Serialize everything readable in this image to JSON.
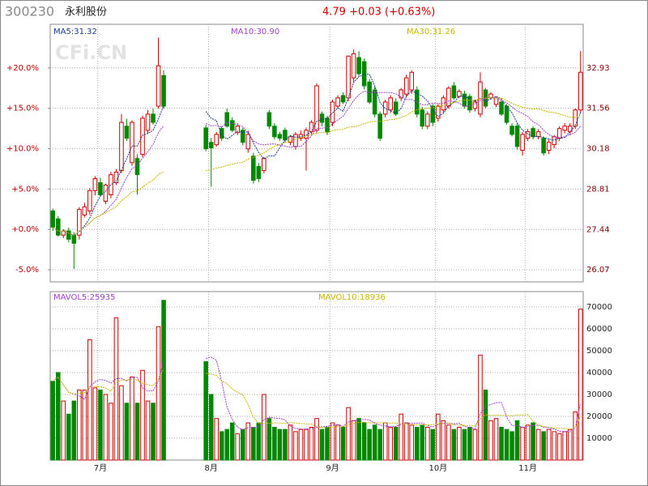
{
  "header": {
    "code": "300230",
    "name": "永利股份",
    "quote": "4.79 +0.03 (+0.63%)",
    "watermark": "CFi.CN"
  },
  "chart_data": {
    "type": "candlestick",
    "categories": [
      null,
      null,
      null,
      null,
      null,
      null,
      null,
      null,
      null,
      "7月",
      null,
      null,
      null,
      null,
      null,
      null,
      null,
      null,
      null,
      null,
      null,
      null,
      null,
      null,
      null,
      null,
      null,
      null,
      null,
      null,
      "8月",
      null,
      null,
      null,
      null,
      null,
      null,
      null,
      null,
      null,
      null,
      null,
      null,
      null,
      null,
      null,
      null,
      null,
      null,
      null,
      null,
      null,
      null,
      "9月",
      null,
      null,
      null,
      null,
      null,
      null,
      null,
      null,
      null,
      null,
      null,
      null,
      null,
      null,
      null,
      null,
      null,
      null,
      null,
      "10月",
      null,
      null,
      null,
      null,
      null,
      null,
      null,
      null,
      null,
      null,
      null,
      null,
      null,
      null,
      null,
      null,
      "11月",
      null,
      null,
      null,
      null,
      null,
      null,
      null,
      null,
      null,
      null
    ],
    "open": [
      28.07,
      27.8,
      27.25,
      27.39,
      27.25,
      27.25,
      27.93,
      28.07,
      28.76,
      29.03,
      28.4,
      28.62,
      29.03,
      29.44,
      30.95,
      29.71,
      29.85,
      29.99,
      30.81,
      31.36,
      31.63,
      32.67,
      null,
      null,
      null,
      null,
      null,
      null,
      null,
      30.89,
      30.4,
      30.32,
      30.87,
      31.41,
      31.14,
      30.73,
      30.81,
      30.18,
      29.93,
      29.58,
      29.44,
      31.41,
      30.95,
      30.67,
      30.81,
      30.4,
      30.26,
      30.54,
      30.54,
      30.76,
      30.81,
      31.36,
      31.22,
      31.08,
      31.63,
      31.99,
      31.91,
      32.59,
      33.28,
      33.14,
      32.45,
      32.18,
      31.36,
      31.36,
      31.5,
      31.77,
      31.91,
      32.04,
      32.18,
      32.18,
      31.5,
      30.95,
      31.63,
      31.22,
      31.5,
      31.63,
      32.32,
      31.96,
      32.04,
      31.96,
      31.55,
      31.36,
      32.18,
      31.91,
      31.69,
      31.77,
      31.63,
      30.95,
      30.95,
      30.13,
      30.54,
      30.87,
      30.59,
      30.54,
      30.13,
      30.32,
      30.54,
      30.81,
      30.76,
      30.95,
      31.5
    ],
    "high": [
      28.15,
      27.9,
      27.45,
      27.5,
      27.35,
      28.2,
      28.35,
      28.85,
      29.25,
      29.2,
      29.0,
      29.4,
      29.5,
      31.36,
      31.2,
      31.15,
      30.0,
      31.3,
      31.5,
      31.55,
      33.96,
      32.85,
      null,
      null,
      null,
      null,
      null,
      null,
      null,
      31.0,
      30.55,
      30.75,
      30.95,
      31.55,
      31.25,
      31.05,
      30.9,
      30.8,
      30.05,
      29.7,
      29.9,
      31.5,
      31.05,
      30.75,
      30.9,
      30.65,
      30.75,
      30.8,
      30.9,
      31.15,
      32.4,
      31.45,
      31.3,
      31.85,
      32.0,
      32.1,
      33.35,
      33.55,
      33.5,
      33.25,
      32.55,
      32.3,
      31.45,
      31.85,
      32.0,
      31.9,
      32.25,
      32.7,
      32.85,
      32.3,
      31.6,
      31.45,
      31.7,
      31.7,
      32.0,
      32.3,
      32.45,
      32.2,
      32.15,
      32.05,
      31.85,
      32.78,
      32.25,
      32.1,
      31.95,
      31.85,
      31.7,
      31.05,
      31.05,
      30.75,
      30.85,
      30.95,
      30.85,
      30.6,
      30.5,
      30.65,
      30.95,
      31.05,
      31.05,
      31.55,
      33.5
    ],
    "low": [
      27.39,
      27.2,
      27.15,
      27.0,
      26.1,
      27.1,
      27.85,
      27.95,
      28.6,
      28.55,
      28.3,
      28.5,
      28.95,
      29.35,
      30.45,
      29.6,
      28.62,
      29.9,
      30.7,
      31.0,
      31.55,
      31.55,
      null,
      null,
      null,
      null,
      null,
      null,
      null,
      30.1,
      28.89,
      30.25,
      30.45,
      30.9,
      30.75,
      30.65,
      30.3,
      30.05,
      29.0,
      29.05,
      29.35,
      30.85,
      30.5,
      30.45,
      30.4,
      30.3,
      30.15,
      30.45,
      29.44,
      30.65,
      30.7,
      30.95,
      30.65,
      30.95,
      31.55,
      31.7,
      31.8,
      32.45,
      32.65,
      32.2,
      31.7,
      31.25,
      30.45,
      31.25,
      31.4,
      31.3,
      31.8,
      31.95,
      32.05,
      31.25,
      30.85,
      30.85,
      30.95,
      31.1,
      31.4,
      31.55,
      31.85,
      31.9,
      31.55,
      31.4,
      31.45,
      31.25,
      31.55,
      31.85,
      31.6,
      31.3,
      31.0,
      30.6,
      30.15,
      29.95,
      30.45,
      30.5,
      30.5,
      29.95,
      30.0,
      30.2,
      30.45,
      30.7,
      30.65,
      30.85,
      31.4
    ],
    "close": [
      27.52,
      27.25,
      27.39,
      27.11,
      26.97,
      28.12,
      28.21,
      28.76,
      29.17,
      28.62,
      28.95,
      29.3,
      29.39,
      31.08,
      30.54,
      31.08,
      29.3,
      31.22,
      31.36,
      31.08,
      33.0,
      31.63,
      null,
      null,
      null,
      null,
      null,
      null,
      null,
      30.18,
      30.21,
      30.67,
      30.54,
      30.95,
      30.81,
      30.95,
      30.4,
      30.67,
      29.11,
      29.17,
      29.85,
      30.95,
      30.59,
      30.54,
      30.48,
      30.59,
      30.67,
      30.67,
      30.81,
      31.08,
      32.32,
      31.08,
      30.76,
      31.77,
      31.91,
      31.77,
      33.33,
      33.41,
      32.73,
      32.32,
      31.77,
      31.36,
      30.54,
      31.77,
      31.91,
      31.36,
      32.18,
      32.59,
      32.78,
      31.36,
      30.95,
      31.36,
      31.08,
      31.63,
      31.91,
      32.24,
      31.91,
      32.13,
      31.63,
      31.5,
      31.77,
      32.45,
      31.63,
      32.04,
      31.91,
      31.36,
      31.08,
      30.67,
      30.26,
      30.67,
      30.76,
      30.59,
      30.76,
      30.04,
      30.4,
      30.59,
      30.87,
      30.95,
      30.95,
      31.5,
      32.78
    ],
    "volume": [
      36000,
      40000,
      27000,
      21000,
      27000,
      32000,
      32000,
      55000,
      33000,
      32000,
      30000,
      26000,
      65000,
      34000,
      26000,
      38000,
      26000,
      41000,
      27000,
      26000,
      61000,
      73000,
      null,
      null,
      null,
      null,
      null,
      null,
      null,
      45000,
      30000,
      19000,
      13000,
      14000,
      17000,
      12000,
      14000,
      17000,
      15000,
      17000,
      30000,
      19000,
      15000,
      14000,
      14000,
      16000,
      13000,
      14000,
      14000,
      15000,
      19000,
      14000,
      15000,
      17000,
      16000,
      15000,
      24000,
      18000,
      19000,
      17000,
      14000,
      16000,
      14000,
      17000,
      15000,
      15000,
      21000,
      17000,
      16000,
      15000,
      16000,
      15000,
      14000,
      21000,
      18000,
      16000,
      14000,
      15000,
      14000,
      15000,
      14000,
      48000,
      32000,
      18000,
      19000,
      15000,
      14000,
      13000,
      18000,
      15000,
      16000,
      17000,
      14000,
      13000,
      14000,
      13000,
      12000,
      13000,
      14000,
      22000,
      69000
    ],
    "up_color": "#d00000",
    "down_color": "#008800",
    "ylim": [
      25.66,
      34.41
    ],
    "yticks": [
      26.07,
      27.44,
      28.81,
      30.18,
      31.56,
      32.93
    ],
    "y2lim": [
      -6.5,
      25.4
    ],
    "y2ticks": [
      {
        "value": -5,
        "label": "-5.0%"
      },
      {
        "value": 0,
        "label": "+0.0%"
      },
      {
        "value": 5,
        "label": "+5.0%"
      },
      {
        "value": 10,
        "label": "+10.0%"
      },
      {
        "value": 15,
        "label": "+15.0%"
      },
      {
        "value": 20,
        "label": "+20.0%"
      }
    ],
    "volume_ylim": [
      0,
      77000
    ],
    "volume_yticks": [
      10000,
      20000,
      30000,
      40000,
      50000,
      60000,
      70000
    ],
    "grid": true,
    "moving_averages": [
      {
        "label": "MA5:31.32",
        "color": "#1a3d8f"
      },
      {
        "label": "MA10:30.90",
        "color": "#a040c8"
      },
      {
        "label": "MA30:31.26",
        "color": "#c8b400"
      }
    ],
    "volume_averages": [
      {
        "label": "MAVOL5:25935",
        "color": "#a040c8"
      },
      {
        "label": "MAVOL10:18936",
        "color": "#c8b400"
      }
    ]
  }
}
